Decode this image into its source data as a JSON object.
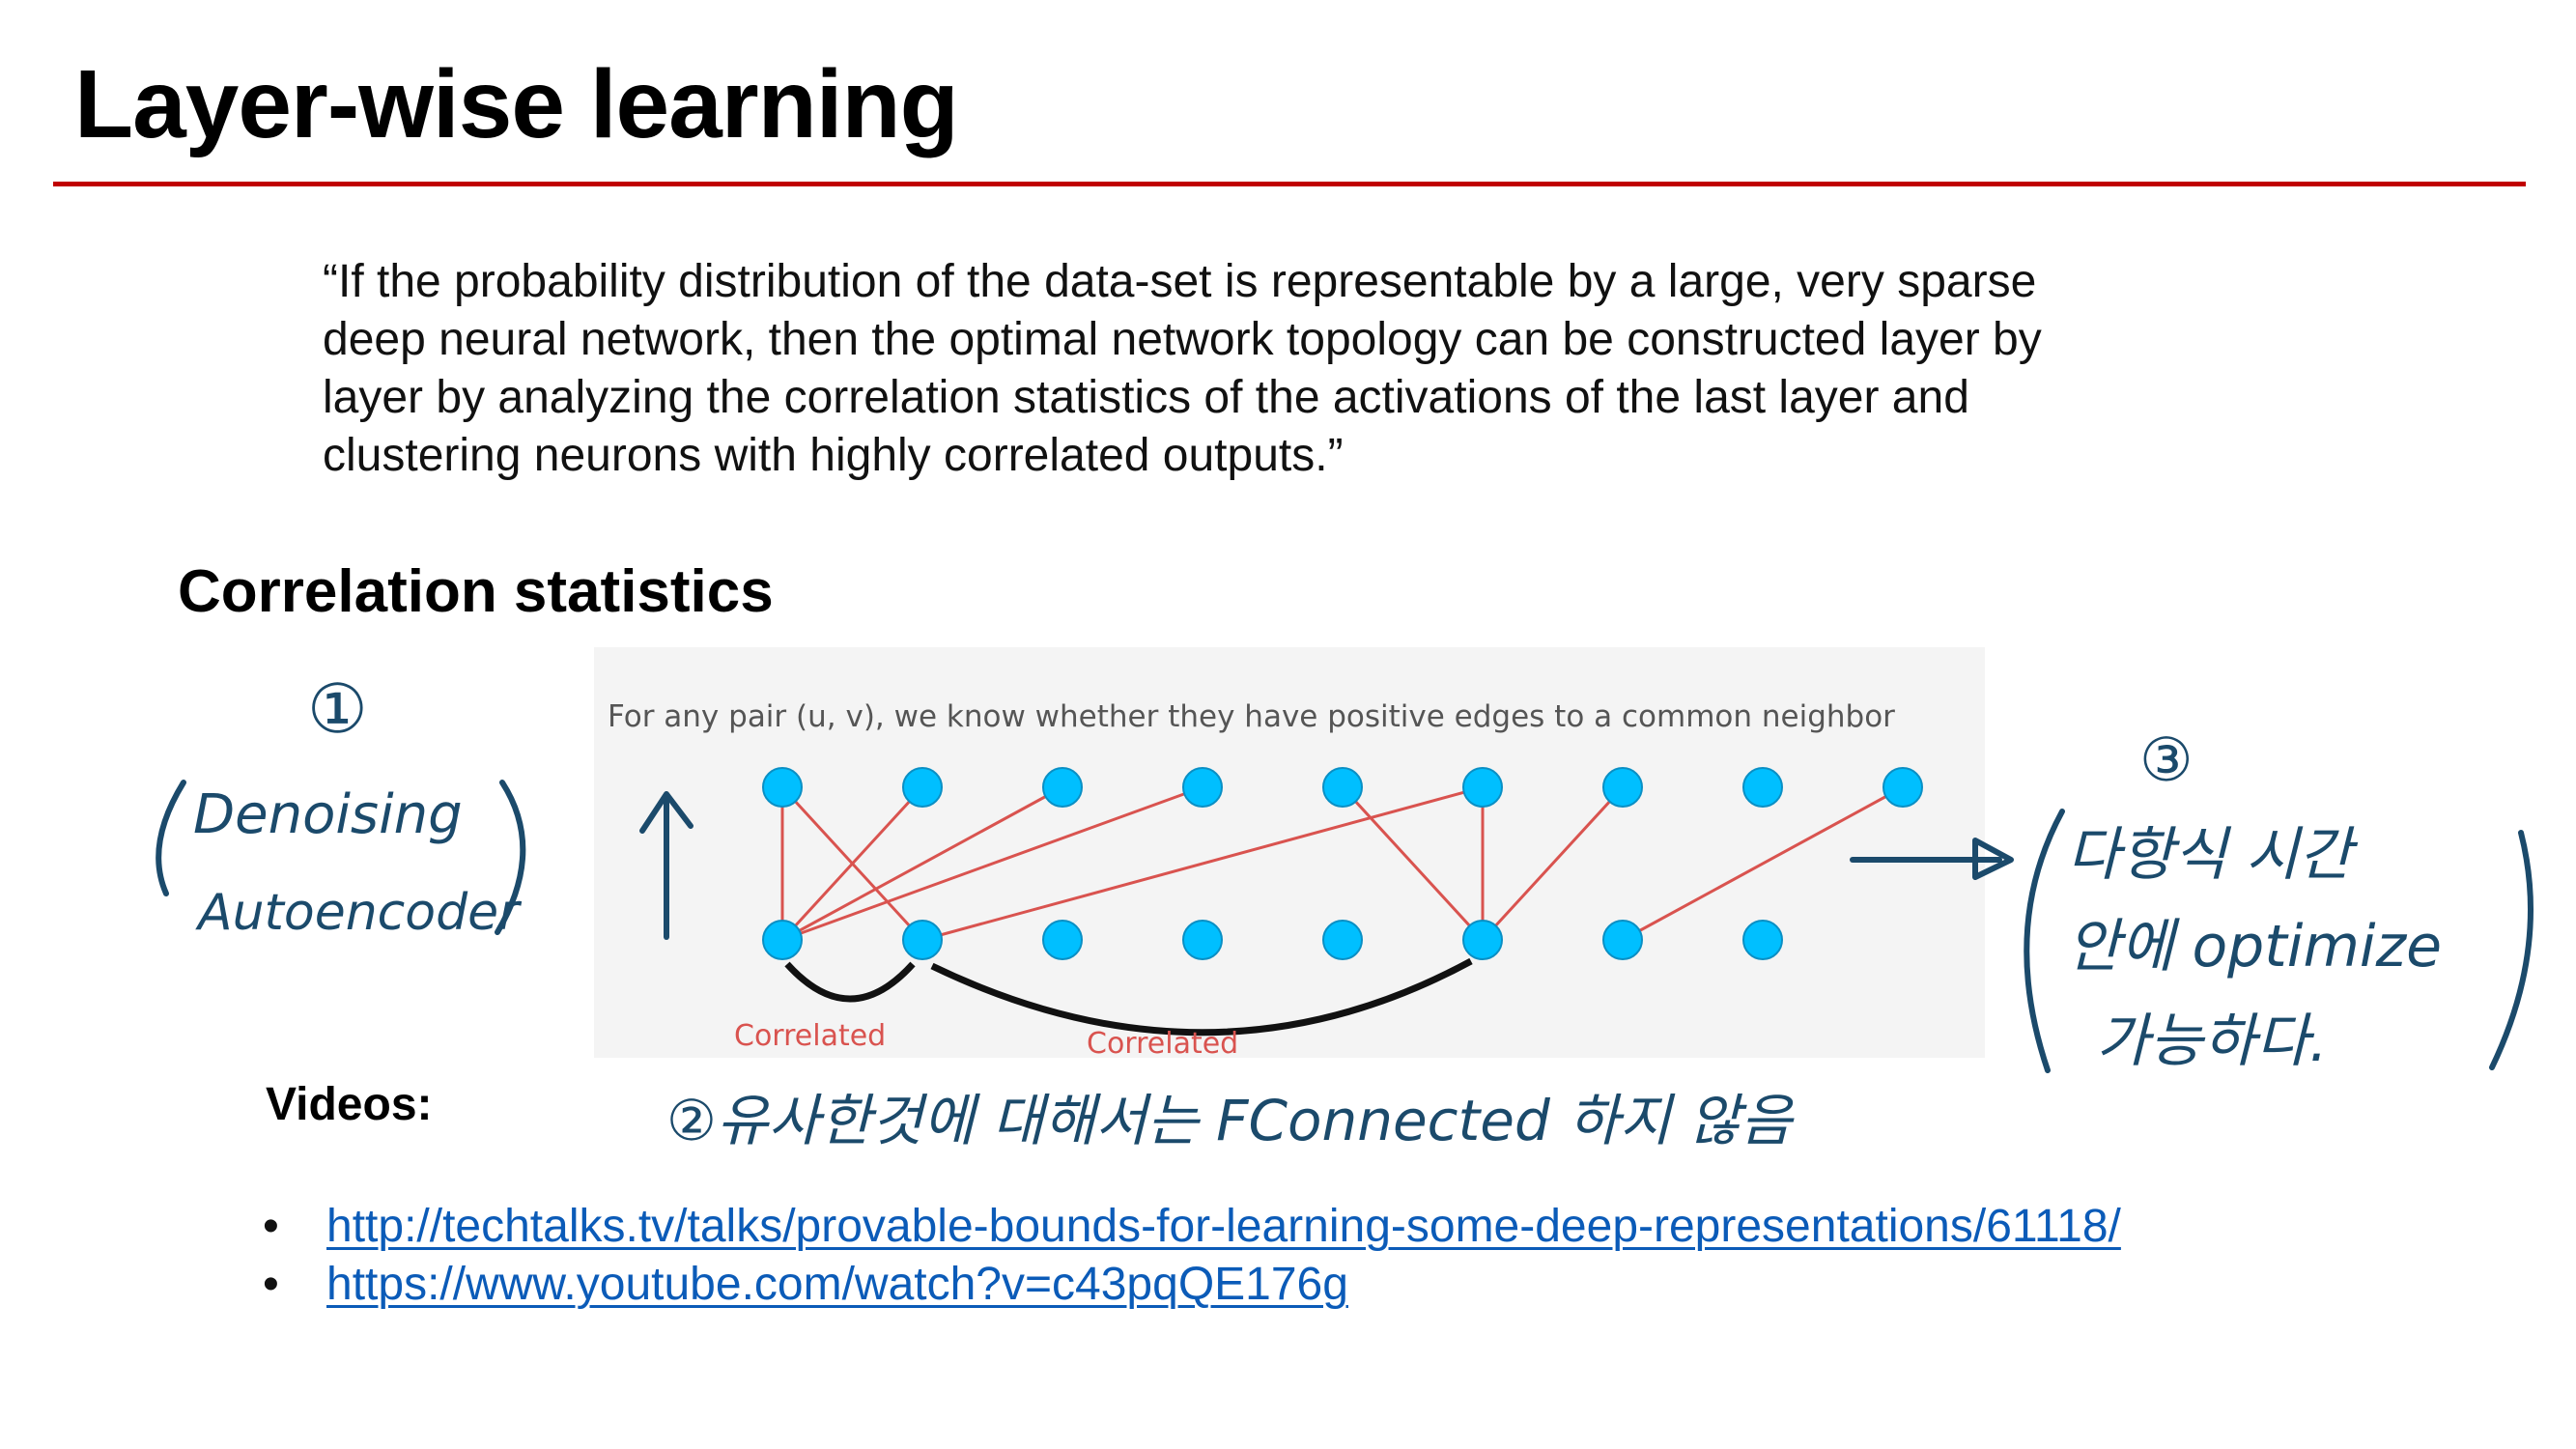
{
  "slide": {
    "title": "Layer-wise learning",
    "accent_color": "#c00000",
    "quote_lines": [
      "“If the probability distribution of the data-set is representable by a large, very sparse",
      "deep neural network, then the optimal network topology can be constructed layer by",
      "layer by analyzing the correlation statistics of the activations of the last layer and",
      "clustering neurons with highly correlated outputs.”"
    ],
    "section_heading": "Correlation statistics",
    "videos_label": "Videos:",
    "links": [
      "http://techtalks.tv/talks/provable-bounds-for-learning-some-deep-representations/61118/",
      "https://www.youtube.com/watch?v=c43pqQE176g"
    ],
    "link_color": "#0b5bb8"
  },
  "figure": {
    "caption": "For any pair (u, v), we know whether they have positive edges to a common neighbor",
    "correlated_label_1": "Correlated",
    "correlated_label_2": "Correlated",
    "node_color": "#00bfff",
    "edge_color": "#d9534f"
  },
  "annotations": {
    "ink_color": "#1b4a6b",
    "note_1_number": "①",
    "note_1_text_line1": "Denoising",
    "note_1_text_line2": "Autoencoder",
    "note_2_text": "②유사한것에 대해서는 FConnected 하지 않음",
    "note_3_number": "③",
    "note_3_line1": "다항식 시간",
    "note_3_line2": "안에 optimize",
    "note_3_line3": "가능하다."
  }
}
